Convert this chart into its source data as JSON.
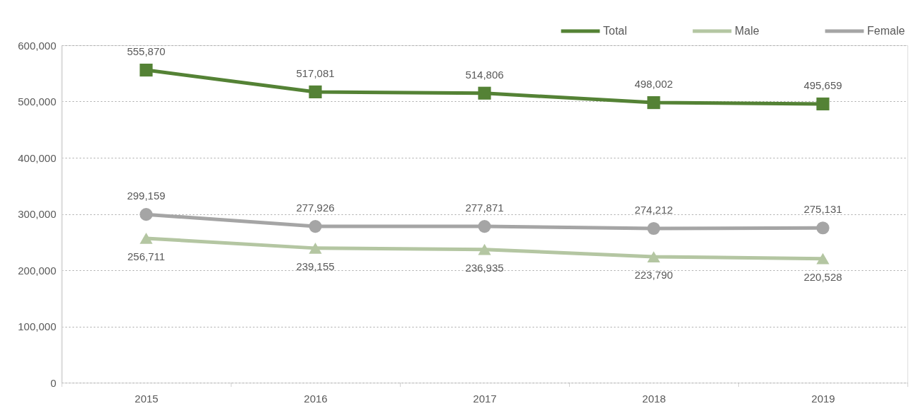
{
  "chart_data": {
    "type": "line",
    "categories": [
      "2015",
      "2016",
      "2017",
      "2018",
      "2019"
    ],
    "series": [
      {
        "name": "Total",
        "color": "#548235",
        "marker": "square",
        "values": [
          555870,
          517081,
          514806,
          498002,
          495659
        ],
        "value_labels": [
          "555,870",
          "517,081",
          "514,806",
          "498,002",
          "495,659"
        ]
      },
      {
        "name": "Male",
        "color": "#b4c6a2",
        "marker": "triangle",
        "values": [
          256711,
          239155,
          236935,
          223790,
          220528
        ],
        "value_labels": [
          "256,711",
          "239,155",
          "236,935",
          "223,790",
          "220,528"
        ]
      },
      {
        "name": "Female",
        "color": "#a5a5a5",
        "marker": "circle",
        "values": [
          299159,
          277926,
          277871,
          274212,
          275131
        ],
        "value_labels": [
          "299,159",
          "277,926",
          "277,871",
          "274,212",
          "275,131"
        ]
      }
    ],
    "ylim": [
      0,
      600000
    ],
    "yticks": [
      {
        "value": 0,
        "label": "0"
      },
      {
        "value": 100000,
        "label": "100,000"
      },
      {
        "value": 200000,
        "label": "200,000"
      },
      {
        "value": 300000,
        "label": "300,000"
      },
      {
        "value": 400000,
        "label": "400,000"
      },
      {
        "value": 500000,
        "label": "500,000"
      },
      {
        "value": 600000,
        "label": "600,000"
      }
    ],
    "grid": "y",
    "legend": "top right",
    "line_style": "solid"
  }
}
